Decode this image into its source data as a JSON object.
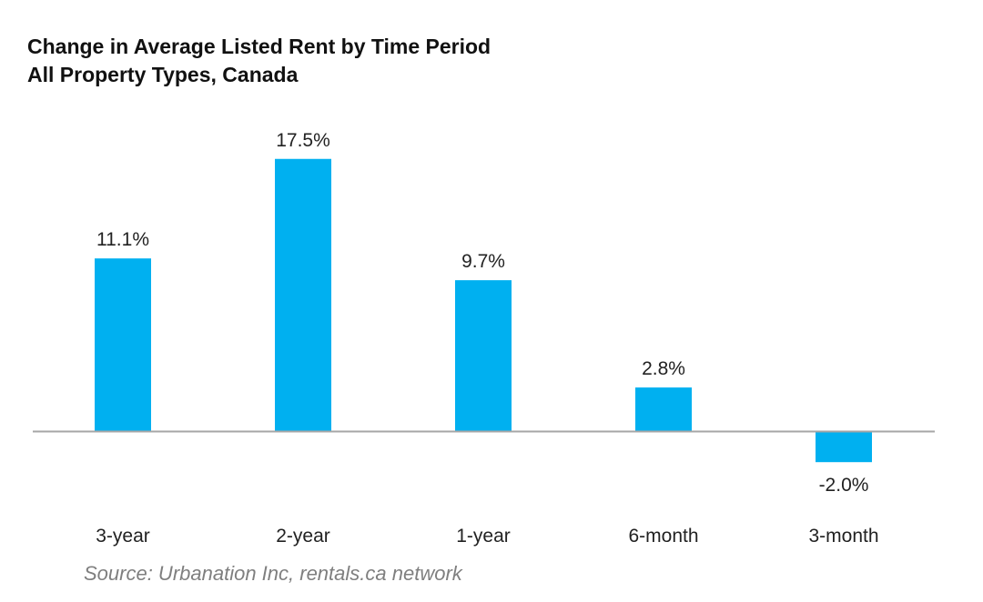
{
  "chart_data": {
    "type": "bar",
    "title": "Change in Average Listed Rent by Time Period",
    "subtitle": "All Property Types, Canada",
    "categories": [
      "3-year",
      "2-year",
      "1-year",
      "6-month",
      "3-month"
    ],
    "values": [
      11.1,
      17.5,
      9.7,
      2.8,
      -2.0
    ],
    "value_labels": [
      "11.1%",
      "17.5%",
      "9.7%",
      "2.8%",
      "-2.0%"
    ],
    "unit": "%",
    "xlabel": "",
    "ylabel": "",
    "ylim": [
      -2.0,
      17.5
    ],
    "grid": false,
    "legend": "none",
    "bar_color": "#00b0f0",
    "axis_color": "#a6a6a6",
    "source": "Source: Urbanation Inc, rentals.ca network"
  }
}
